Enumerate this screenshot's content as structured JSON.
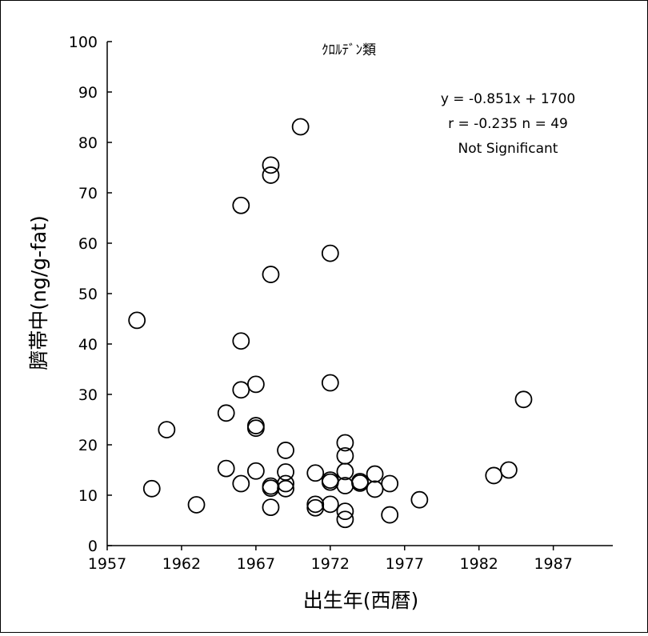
{
  "chart_data": {
    "type": "scatter",
    "title": "ｸﾛﾙﾃﾞﾝ類",
    "xlabel": "出生年(西暦)",
    "ylabel": "臍帯中(ng/g-fat)",
    "xlim": [
      1957,
      1991
    ],
    "ylim": [
      0,
      100
    ],
    "xticks": [
      1957,
      1962,
      1967,
      1972,
      1977,
      1982,
      1987
    ],
    "yticks": [
      0,
      10,
      20,
      30,
      40,
      50,
      60,
      70,
      80,
      90,
      100
    ],
    "grid": false,
    "annotations": [
      "y = -0.851x + 1700",
      "r = -0.235 n = 49",
      "Not Significant"
    ],
    "marker": "open-circle",
    "series": [
      {
        "points": [
          [
            1959,
            44.7
          ],
          [
            1960,
            11.3
          ],
          [
            1961,
            23.0
          ],
          [
            1963,
            8.1
          ],
          [
            1965,
            26.3
          ],
          [
            1965,
            15.3
          ],
          [
            1966,
            67.5
          ],
          [
            1966,
            40.6
          ],
          [
            1966,
            30.9
          ],
          [
            1966,
            12.3
          ],
          [
            1967,
            32.0
          ],
          [
            1967,
            23.8
          ],
          [
            1967,
            23.3
          ],
          [
            1967,
            14.8
          ],
          [
            1968,
            75.5
          ],
          [
            1968,
            73.5
          ],
          [
            1968,
            53.8
          ],
          [
            1968,
            11.8
          ],
          [
            1968,
            11.4
          ],
          [
            1968,
            7.6
          ],
          [
            1969,
            18.9
          ],
          [
            1969,
            14.6
          ],
          [
            1969,
            12.3
          ],
          [
            1969,
            11.3
          ],
          [
            1970,
            83.1
          ],
          [
            1971,
            14.4
          ],
          [
            1971,
            8.2
          ],
          [
            1971,
            7.5
          ],
          [
            1972,
            58.0
          ],
          [
            1972,
            32.3
          ],
          [
            1972,
            13.0
          ],
          [
            1972,
            12.6
          ],
          [
            1972,
            8.2
          ],
          [
            1973,
            20.4
          ],
          [
            1973,
            17.8
          ],
          [
            1973,
            14.7
          ],
          [
            1973,
            11.9
          ],
          [
            1973,
            6.8
          ],
          [
            1973,
            5.2
          ],
          [
            1974,
            12.7
          ],
          [
            1974,
            12.4
          ],
          [
            1975,
            14.2
          ],
          [
            1975,
            11.2
          ],
          [
            1976,
            12.3
          ],
          [
            1976,
            6.1
          ],
          [
            1978,
            9.1
          ],
          [
            1983,
            13.9
          ],
          [
            1984,
            15.0
          ],
          [
            1985,
            29.0
          ]
        ]
      }
    ]
  }
}
